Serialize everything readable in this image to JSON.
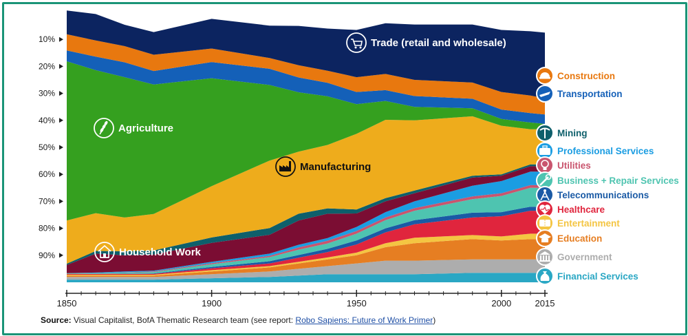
{
  "chart_data": {
    "type": "area",
    "stacked": true,
    "normalized": true,
    "x": [
      1850,
      1860,
      1870,
      1880,
      1900,
      1920,
      1930,
      1940,
      1950,
      1960,
      1970,
      1990,
      2000,
      2010,
      2015
    ],
    "ylim": [
      0,
      100
    ],
    "y_ticks": [
      "10%",
      "20%",
      "30%",
      "40%",
      "50%",
      "60%",
      "70%",
      "80%",
      "90%"
    ],
    "x_ticks": [
      "1850",
      "1900",
      "1950",
      "2000",
      "2015"
    ],
    "series": [
      {
        "name": "Financial Services",
        "color": "#2aa7c4",
        "values": [
          1,
          1,
          1,
          1,
          1.5,
          2,
          2.5,
          3,
          3,
          3,
          3,
          3.5,
          3.5,
          3.5,
          3.5
        ]
      },
      {
        "name": "Government",
        "color": "#adadad",
        "values": [
          1,
          1,
          1,
          1,
          1.5,
          2,
          2.5,
          3,
          4,
          5,
          5,
          5,
          5,
          5,
          5
        ]
      },
      {
        "name": "Education",
        "color": "#e67e22",
        "values": [
          0.5,
          0.5,
          0.5,
          0.5,
          1,
          1.5,
          2,
          2.5,
          3,
          5,
          6.5,
          7.5,
          7,
          7.5,
          7.5
        ]
      },
      {
        "name": "Entertainment",
        "color": "#f4c542",
        "values": [
          0.3,
          0.3,
          0.3,
          0.3,
          0.5,
          0.5,
          0.6,
          0.7,
          1,
          1.5,
          2,
          1.5,
          1.5,
          2,
          2
        ]
      },
      {
        "name": "Healthcare",
        "color": "#e0253d",
        "values": [
          0.3,
          0.3,
          0.3,
          0.3,
          0.7,
          1,
          1.5,
          2,
          3,
          4,
          5,
          6.5,
          7.5,
          8.5,
          8.5
        ]
      },
      {
        "name": "Telecommunications",
        "color": "#1a5aa5",
        "values": [
          0,
          0,
          0.1,
          0.2,
          0.5,
          0.8,
          1,
          1.2,
          1.5,
          1.5,
          1.5,
          1.8,
          1.5,
          1.5,
          1.5
        ]
      },
      {
        "name": "Business + Repair Services",
        "color": "#4ec4b0",
        "values": [
          0.3,
          0.3,
          0.4,
          0.5,
          1,
          1.5,
          2,
          2,
          2.5,
          3,
          3.5,
          5,
          6,
          7,
          7
        ]
      },
      {
        "name": "Utilities",
        "color": "#c9556e",
        "values": [
          0,
          0,
          0.1,
          0.2,
          0.4,
          0.5,
          0.8,
          1,
          1,
          1,
          1,
          1,
          1,
          1,
          1
        ]
      },
      {
        "name": "Professional Services",
        "color": "#1b9de2",
        "values": [
          0,
          0.2,
          0.3,
          0.3,
          0.5,
          0.8,
          1,
          1,
          1.5,
          2,
          2.5,
          4,
          4.5,
          5,
          5
        ]
      },
      {
        "name": "Household Work",
        "color": "#7b0d33",
        "values": [
          3,
          7,
          6,
          6,
          7,
          7,
          9,
          9,
          5,
          4,
          3,
          3,
          2,
          2,
          2
        ]
      },
      {
        "name": "Mining",
        "color": "#0e5f6b",
        "values": [
          0.5,
          1,
          1.5,
          1.5,
          2,
          2.5,
          2.5,
          2,
          1.5,
          1.2,
          1,
          0.7,
          0.5,
          0.7,
          0.7
        ]
      },
      {
        "name": "Manufacturing",
        "color": "#eeac1c",
        "values": [
          16,
          14,
          12.5,
          13.5,
          19,
          25,
          23,
          23.5,
          28,
          29,
          26,
          22,
          18,
          13,
          13
        ]
      },
      {
        "name": "Agriculture",
        "color": "#35a01f",
        "values": [
          59,
          53,
          52,
          48,
          40,
          28,
          22,
          18,
          11,
          7,
          5,
          3,
          2.5,
          2.5,
          2
        ]
      },
      {
        "name": "Transportation",
        "color": "#1460b8",
        "values": [
          4,
          5,
          5.5,
          5,
          6,
          6,
          5.5,
          5,
          4.5,
          4,
          4,
          3.5,
          3.5,
          3.5,
          3.5
        ]
      },
      {
        "name": "Construction",
        "color": "#e8780f",
        "values": [
          6,
          6,
          6,
          6,
          5,
          4,
          4.5,
          4.5,
          5.5,
          6,
          6,
          6,
          6.5,
          6.5,
          6
        ]
      },
      {
        "name": "Trade (retail and wholesale)",
        "color": "#0c2460",
        "values": [
          8.8,
          9.8,
          7.9,
          8.4,
          11,
          12,
          14.6,
          15.6,
          17.5,
          18.8,
          20.5,
          21.5,
          23,
          23.8,
          24.3
        ]
      }
    ],
    "in_chart_labels": {
      "trade": "Trade (retail and wholesale)",
      "agriculture": "Agriculture",
      "manufacturing": "Manufacturing",
      "household": "Household Work"
    },
    "legend": [
      {
        "label": "Construction",
        "color": "#e8780f",
        "icon": "hardhat-icon"
      },
      {
        "label": "Transportation",
        "color": "#1460b8",
        "icon": "plane-icon"
      },
      {
        "label": "Mining",
        "color": "#0e5f6b",
        "icon": "pickaxe-icon"
      },
      {
        "label": "Professional Services",
        "color": "#1b9de2",
        "icon": "briefcase-icon"
      },
      {
        "label": "Utilities",
        "color": "#c9556e",
        "icon": "lightbulb-icon"
      },
      {
        "label": "Business + Repair Services",
        "color": "#4ec4b0",
        "icon": "wrench-icon"
      },
      {
        "label": "Telecommunications",
        "color": "#1a5aa5",
        "icon": "antenna-icon"
      },
      {
        "label": "Healthcare",
        "color": "#e0253d",
        "icon": "heartbeat-icon"
      },
      {
        "label": "Entertainment",
        "color": "#f4c542",
        "icon": "ticket-icon"
      },
      {
        "label": "Education",
        "color": "#e67e22",
        "icon": "graduation-cap-icon"
      },
      {
        "label": "Government",
        "color": "#adadad",
        "icon": "capitol-icon"
      },
      {
        "label": "Financial Services",
        "color": "#2aa7c4",
        "icon": "money-bag-icon"
      }
    ]
  },
  "source": {
    "prefix": "Source:",
    "text": " Visual Capitalist, BofA Thematic Research team (see report: ",
    "link": "Robo Sapiens: Future of Work Primer",
    "suffix": ")"
  }
}
